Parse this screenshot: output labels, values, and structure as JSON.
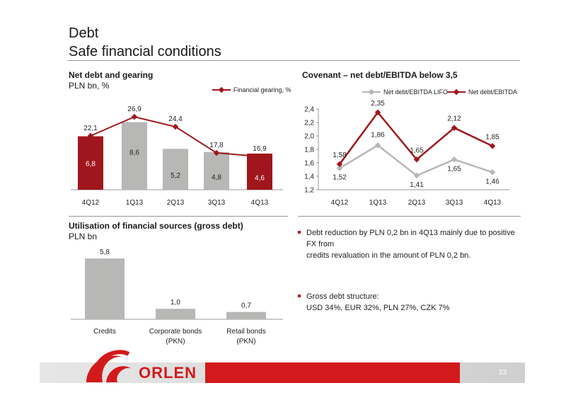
{
  "header": {
    "title_line1": "Debt",
    "title_line2": "Safe financial conditions"
  },
  "colors": {
    "accent": "#c0141c",
    "grey_bar": "#b7b7b6",
    "dark_red": "#a0161c",
    "lifo": "#b7b7b6"
  },
  "charts": {
    "net_debt": {
      "title": "Net debt and gearing",
      "subtitle": "PLN bn, %"
    },
    "covenant": {
      "title": "Covenant – net debt/EBITDA below 3,5"
    },
    "sources": {
      "title": "Utilisation of financial sources (gross debt)",
      "subtitle": "PLN bn"
    }
  },
  "bullets": [
    {
      "line1": "Debt reduction by PLN 0,2 bn in 4Q13 mainly due to positive FX from",
      "line2": "credits revaluation in the amount of PLN 0,2 bn."
    },
    {
      "line1": "Gross debt structure:",
      "line2": "USD 34%, EUR 32%, PLN 27%, CZK 7%"
    }
  ],
  "footer": {
    "brand": "ORLEN",
    "page_number": "23"
  },
  "chart_data": [
    {
      "type": "bar",
      "categories": [
        "4Q12",
        "1Q13",
        "2Q13",
        "3Q13",
        "4Q13"
      ],
      "values": [
        6.8,
        8.6,
        5.2,
        4.8,
        4.6
      ],
      "value_labels": [
        "6,8",
        "8,6",
        "5,2",
        "4,8",
        "4,6"
      ],
      "bar_colors": [
        "#a0161c",
        "#b7b7b6",
        "#b7b7b6",
        "#b7b7b6",
        "#a0161c"
      ],
      "line_series": {
        "name": "Financial gearing, %",
        "values": [
          22.1,
          26.9,
          24.4,
          17.8,
          16.9
        ],
        "labels": [
          "22,1",
          "26,9",
          "24,4",
          "17,8",
          "16,9"
        ]
      },
      "legend_position": "top-right"
    },
    {
      "type": "line",
      "categories": [
        "4Q12",
        "1Q13",
        "2Q13",
        "3Q13",
        "4Q13"
      ],
      "ylim": [
        1.2,
        2.4
      ],
      "yticks": [
        "1,2",
        "1,4",
        "1,6",
        "1,8",
        "2,0",
        "2,2",
        "2,4"
      ],
      "series": [
        {
          "name": "Net debt/EBITDA LIFO",
          "values": [
            1.52,
            1.86,
            1.41,
            1.65,
            1.46
          ],
          "labels": [
            "1,52",
            "1,86",
            "1,41",
            "1,65",
            "1,46"
          ]
        },
        {
          "name": "Net debt/EBITDA",
          "values": [
            1.58,
            2.35,
            1.65,
            2.12,
            1.85
          ],
          "labels": [
            "1,58",
            "2,35",
            "1,65",
            "2,12",
            "1,85"
          ]
        }
      ],
      "legend_position": "top"
    },
    {
      "type": "bar",
      "categories": [
        "Credits",
        "Corporate bonds (PKN)",
        "Retail bonds (PKN)"
      ],
      "category_lines": [
        [
          "Credits"
        ],
        [
          "Corporate bonds",
          "(PKN)"
        ],
        [
          "Retail bonds",
          "(PKN)"
        ]
      ],
      "values": [
        5.8,
        1.0,
        0.7
      ],
      "value_labels": [
        "5,8",
        "1,0",
        "0,7"
      ]
    }
  ]
}
